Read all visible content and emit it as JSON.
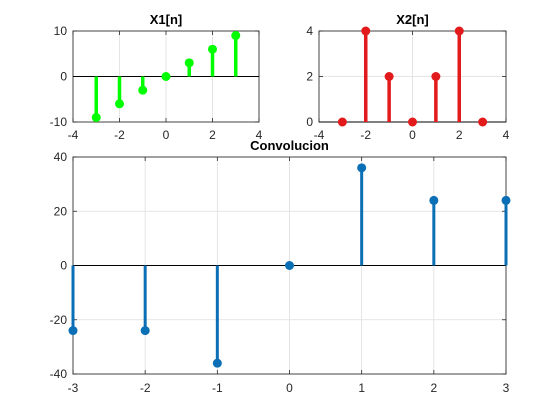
{
  "chart_data": [
    {
      "id": "x1",
      "type": "stem",
      "title": "X1[n]",
      "color": "#00ff00",
      "x": [
        -3,
        -2,
        -1,
        0,
        1,
        2,
        3
      ],
      "y": [
        -9,
        -6,
        -3,
        0,
        3,
        6,
        9
      ],
      "xlim": [
        -4,
        4
      ],
      "ylim": [
        -10,
        10
      ],
      "xticks": [
        -4,
        -2,
        0,
        2,
        4
      ],
      "yticks": [
        -10,
        0,
        10
      ],
      "grid": true,
      "baseline": 0
    },
    {
      "id": "x2",
      "type": "stem",
      "title": "X2[n]",
      "color": "#e31a1c",
      "x": [
        -3,
        -2,
        -1,
        0,
        1,
        2,
        3
      ],
      "y": [
        0,
        4,
        2,
        0,
        2,
        4,
        0
      ],
      "xlim": [
        -4,
        4
      ],
      "ylim": [
        0,
        4
      ],
      "xticks": [
        -4,
        -2,
        0,
        2,
        4
      ],
      "yticks": [
        0,
        2,
        4
      ],
      "grid": true,
      "baseline": 0
    },
    {
      "id": "conv",
      "type": "stem",
      "title": "Convolucion",
      "color": "#0b6fb5",
      "x": [
        -3,
        -2,
        -1,
        0,
        1,
        2,
        3
      ],
      "y": [
        -24,
        -24,
        -36,
        0,
        36,
        24,
        24
      ],
      "xlim": [
        -3,
        3
      ],
      "ylim": [
        -40,
        40
      ],
      "xticks": [
        -3,
        -2,
        -1,
        0,
        1,
        2,
        3
      ],
      "yticks": [
        -40,
        -20,
        0,
        20,
        40
      ],
      "grid": true,
      "baseline": 0
    }
  ]
}
